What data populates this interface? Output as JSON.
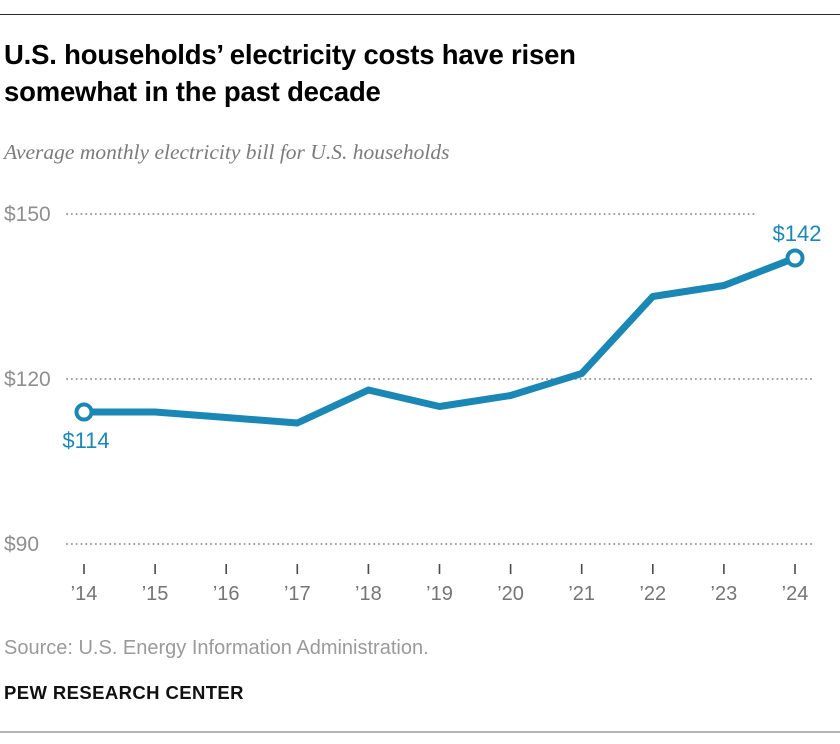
{
  "header": {
    "title": "U.S. households’ electricity costs have risen somewhat in the past decade",
    "subtitle": "Average monthly electricity bill for U.S. households"
  },
  "footer": {
    "source": "Source: U.S. Energy Information Administration.",
    "brand": "PEW RESEARCH CENTER"
  },
  "colors": {
    "line": "#1b87b4",
    "grid": "#9a9a9a",
    "axis_label_text": "#8f8f8f",
    "year_label_text": "#757575",
    "title_text": "#000000",
    "subtitle_text": "#7b7b7b",
    "source_text": "#9a9a9a"
  },
  "chart_data": {
    "type": "line",
    "title": "U.S. households’ electricity costs have risen somewhat in the past decade",
    "subtitle": "Average monthly electricity bill for U.S. households",
    "x": [
      2014,
      2015,
      2016,
      2017,
      2018,
      2019,
      2020,
      2021,
      2022,
      2023,
      2024
    ],
    "x_tick_labels": [
      "’14",
      "’15",
      "’16",
      "’17",
      "’18",
      "’19",
      "’20",
      "’21",
      "’22",
      "’23",
      "’24"
    ],
    "series": [
      {
        "name": "Average monthly electricity bill",
        "values": [
          114,
          114,
          113,
          112,
          118,
          115,
          117,
          121,
          135,
          137,
          142
        ]
      }
    ],
    "y_ticks": [
      150,
      120,
      90
    ],
    "y_tick_labels": [
      "$150",
      "$120",
      "$90"
    ],
    "ylim": [
      85,
      155
    ],
    "grid": "horizontal-dotted",
    "legend": "none",
    "point_labels": [
      {
        "index": 0,
        "text": "$114",
        "position": "below"
      },
      {
        "index": 10,
        "text": "$142",
        "position": "above"
      }
    ],
    "endpoint_markers": [
      0,
      10
    ]
  }
}
